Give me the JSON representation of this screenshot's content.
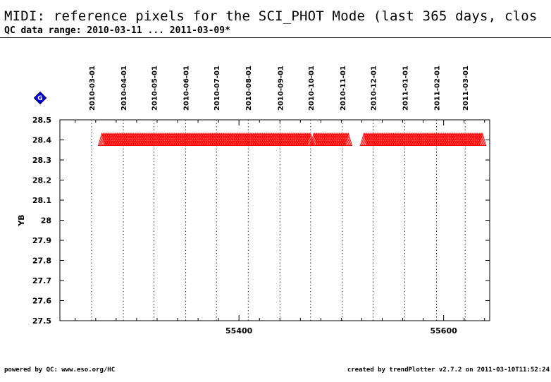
{
  "header": {
    "title": "MIDI: reference pixels for the SCI_PHOT Mode (last 365 days, clos",
    "subtitle": "QC data range: 2010-03-11 ... 2011-03-09*"
  },
  "footer": {
    "left": "powered by QC: www.eso.org/HC",
    "right": "created by trendPlotter v2.7.2 on 2011-03-10T11:52:24"
  },
  "chart_data": {
    "type": "scatter",
    "ylabel": "YB",
    "badge": "G",
    "ylim": [
      27.5,
      28.5
    ],
    "yticks": [
      27.5,
      27.6,
      27.7,
      27.8,
      27.9,
      28,
      28.1,
      28.2,
      28.3,
      28.4,
      28.5
    ],
    "ytick_labels": [
      "27.5",
      "27.6",
      "27.7",
      "27.8",
      "27.9",
      "28",
      "28.1",
      "28.2",
      "28.3",
      "28.4",
      "28.5"
    ],
    "xlim": [
      55225,
      55645
    ],
    "xticks": [
      55400,
      55600
    ],
    "xtick_labels": [
      "55400",
      "55600"
    ],
    "date_ticks": [
      {
        "label": "2010-03-01",
        "mjd": 55256
      },
      {
        "label": "2010-04-01",
        "mjd": 55287
      },
      {
        "label": "2010-05-01",
        "mjd": 55317
      },
      {
        "label": "2010-06-01",
        "mjd": 55348
      },
      {
        "label": "2010-07-01",
        "mjd": 55378
      },
      {
        "label": "2010-08-01",
        "mjd": 55409
      },
      {
        "label": "2010-09-01",
        "mjd": 55440
      },
      {
        "label": "2010-10-01",
        "mjd": 55470
      },
      {
        "label": "2010-11-01",
        "mjd": 55501
      },
      {
        "label": "2010-12-01",
        "mjd": 55531
      },
      {
        "label": "2011-01-01",
        "mjd": 55562
      },
      {
        "label": "2011-02-01",
        "mjd": 55593
      },
      {
        "label": "2011-03-01",
        "mjd": 55621
      }
    ],
    "series": [
      {
        "color": "#ff0000",
        "marker": "triangle",
        "segments": [
          {
            "x_start": 55266,
            "x_end": 55470,
            "y": 28.4
          },
          {
            "x_start": 55473,
            "x_end": 55507,
            "y": 28.4
          },
          {
            "x_start": 55522,
            "x_end": 55638,
            "y": 28.4
          }
        ]
      }
    ],
    "grid": "vertical dotted at date ticks",
    "colors": {
      "axis": "#000000",
      "grid": "#000000",
      "badge": "#0000cc"
    }
  }
}
